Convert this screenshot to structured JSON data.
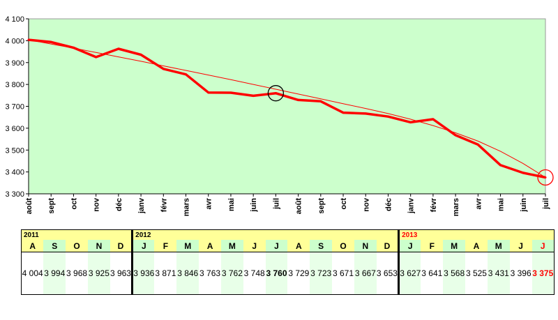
{
  "chart_data": {
    "type": "line",
    "ylim": [
      3300,
      4100
    ],
    "y_ticks": [
      "3 300",
      "3 400",
      "3 500",
      "3 600",
      "3 700",
      "3 800",
      "3 900",
      "4 000",
      "4 100"
    ],
    "grid": false,
    "categories": [
      "août",
      "sept",
      "oct",
      "nov",
      "déc",
      "janv",
      "févr",
      "mars",
      "avr",
      "mai",
      "juin",
      "juil",
      "août",
      "sept",
      "oct",
      "nov",
      "déc",
      "janv",
      "févr",
      "mars",
      "avr",
      "mai",
      "juin",
      "juil"
    ],
    "series": [
      {
        "values": [
          4004,
          3994,
          3968,
          3925,
          3963,
          3936,
          3871,
          3846,
          3763,
          3762,
          3748,
          3760,
          3729,
          3723,
          3671,
          3667,
          3653,
          3627,
          3641,
          3568,
          3525,
          3431,
          3396,
          3375
        ],
        "color": "#ff0000"
      }
    ],
    "trend": {
      "type": "polynomial",
      "color": "#ff0000",
      "values": [
        4004,
        3985,
        3966,
        3946,
        3926,
        3906,
        3885,
        3864,
        3843,
        3822,
        3800,
        3778,
        3756,
        3734,
        3712,
        3690,
        3667,
        3641,
        3612,
        3579,
        3541,
        3494,
        3439,
        3375
      ]
    },
    "highlights": [
      {
        "index": 11,
        "color": "#000000"
      },
      {
        "index": 23,
        "color": "#ff0000"
      }
    ],
    "plot_background": "#ccffcc"
  },
  "table": {
    "groups": [
      {
        "year": "2011",
        "year_color": "#000000",
        "span": 5
      },
      {
        "year": "2012",
        "year_color": "#000000",
        "span": 12
      },
      {
        "year": "2013",
        "year_color": "#ff0000",
        "span": 7
      }
    ],
    "months": [
      "A",
      "S",
      "O",
      "N",
      "D",
      "J",
      "F",
      "M",
      "A",
      "M",
      "J",
      "J",
      "A",
      "S",
      "O",
      "N",
      "D",
      "J",
      "F",
      "M",
      "A",
      "M",
      "J",
      "J"
    ],
    "values": [
      "4 004",
      "3 994",
      "3 968",
      "3 925",
      "3 963",
      "3 936",
      "3 871",
      "3 846",
      "3 763",
      "3 762",
      "3 748",
      "3 760",
      "3 729",
      "3 723",
      "3 671",
      "3 667",
      "3 653",
      "3 627",
      "3 641",
      "3 568",
      "3 525",
      "3 431",
      "3 396",
      "3 375"
    ]
  }
}
